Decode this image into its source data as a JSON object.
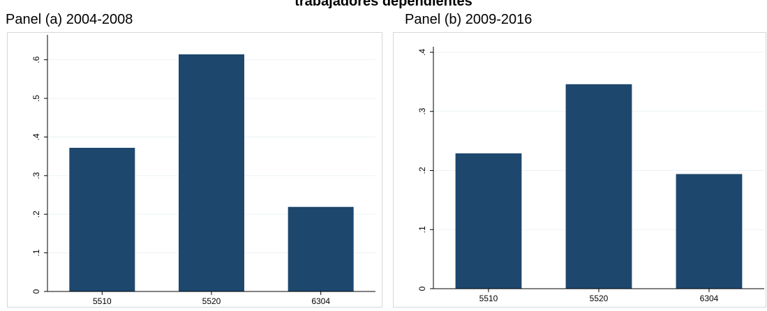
{
  "figure_title": "trabajadores dependientes",
  "chart_data": [
    {
      "type": "bar",
      "title": "Panel (a) 2004-2008",
      "categories": [
        "5510",
        "5520",
        "6304"
      ],
      "values": [
        0.372,
        0.614,
        0.219
      ],
      "ylim": [
        0,
        0.65
      ],
      "yticks": [
        0,
        0.1,
        0.2,
        0.3,
        0.4,
        0.5,
        0.6
      ],
      "ytick_labels": [
        "0",
        ".1",
        ".2",
        ".3",
        ".4",
        ".5",
        ".6"
      ],
      "grid": true,
      "bar_color": "#1d476d",
      "xlabel": "",
      "ylabel": ""
    },
    {
      "type": "bar",
      "title": "Panel (b) 2009-2016",
      "categories": [
        "5510",
        "5520",
        "6304"
      ],
      "values": [
        0.229,
        0.346,
        0.194
      ],
      "ylim": [
        0,
        0.4
      ],
      "yticks": [
        0,
        0.1,
        0.2,
        0.3,
        0.4
      ],
      "ytick_labels": [
        "0",
        ".1",
        ".2",
        ".3",
        ".4"
      ],
      "grid": true,
      "bar_color": "#1d476d",
      "xlabel": "",
      "ylabel": ""
    }
  ]
}
